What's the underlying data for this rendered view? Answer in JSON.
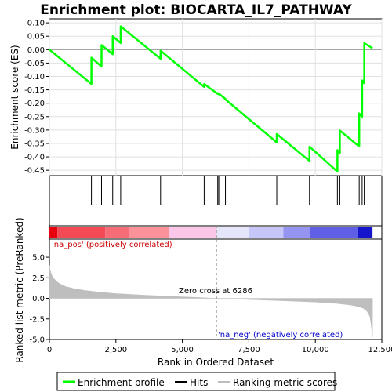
{
  "chart_data": {
    "type": "line",
    "title": "Enrichment plot: BIOCARTA_IL7_PATHWAY",
    "es_panel": {
      "ylabel": "Enrichment score (ES)",
      "ylim": [
        -0.47,
        0.115
      ],
      "yticks": [
        0.1,
        0.05,
        0.0,
        -0.05,
        -0.1,
        -0.15,
        -0.2,
        -0.25,
        -0.3,
        -0.35,
        -0.4,
        -0.45
      ],
      "ytick_labels": [
        "0.10",
        "0.05",
        "0.00",
        "-0.05",
        "-0.10",
        "-0.15",
        "-0.20",
        "-0.25",
        "-0.30",
        "-0.35",
        "-0.40",
        "-0.45"
      ],
      "grid": true,
      "series": [
        {
          "name": "Enrichment profile",
          "color": "#00ff00",
          "x": [
            0,
            1580,
            1581,
            1960,
            1961,
            2380,
            2381,
            2680,
            2681,
            4180,
            4181,
            5820,
            5821,
            6330,
            6331,
            6370,
            6371,
            6620,
            6621,
            8550,
            8551,
            9780,
            9781,
            10830,
            10831,
            10920,
            10921,
            11650,
            11651,
            11760,
            11761,
            11840,
            11841,
            12150
          ],
          "y": [
            0.0,
            -0.128,
            -0.03,
            -0.063,
            0.017,
            -0.017,
            0.05,
            0.025,
            0.087,
            -0.034,
            -0.004,
            -0.139,
            -0.128,
            -0.165,
            -0.162,
            -0.167,
            -0.164,
            -0.184,
            -0.186,
            -0.346,
            -0.315,
            -0.415,
            -0.362,
            -0.455,
            -0.375,
            -0.386,
            -0.302,
            -0.361,
            -0.238,
            -0.25,
            -0.115,
            -0.125,
            0.024,
            0.005
          ]
        }
      ]
    },
    "hits": {
      "name": "Hits",
      "color": "#000000",
      "x": [
        1580,
        1960,
        2380,
        2680,
        4180,
        5820,
        6330,
        6370,
        6620,
        8550,
        9780,
        10830,
        10920,
        11650,
        11760,
        11840
      ]
    },
    "ranking_bar": {
      "segments": [
        {
          "x0": 0,
          "x1": 300,
          "color": "#e8000f"
        },
        {
          "x0": 300,
          "x1": 2100,
          "color": "#f44a55"
        },
        {
          "x0": 2100,
          "x1": 3000,
          "color": "#f76d77"
        },
        {
          "x0": 3000,
          "x1": 4500,
          "color": "#fb9199"
        },
        {
          "x0": 4500,
          "x1": 6300,
          "color": "#fbc6e8"
        },
        {
          "x0": 6300,
          "x1": 7500,
          "color": "#e6e6fb"
        },
        {
          "x0": 7500,
          "x1": 8800,
          "color": "#c6c6f9"
        },
        {
          "x0": 8800,
          "x1": 9800,
          "color": "#9595f1"
        },
        {
          "x0": 9800,
          "x1": 11600,
          "color": "#6060e6"
        },
        {
          "x0": 11600,
          "x1": 12150,
          "color": "#1515cc"
        }
      ]
    },
    "metric_panel": {
      "ylabel": "Ranked list metric (PreRanked)",
      "ylim": [
        -5.0,
        7.2
      ],
      "yticks": [
        5.0,
        2.5,
        0.0,
        -2.5,
        -5.0
      ],
      "ytick_labels": [
        "5.0",
        "2.5",
        "0.0",
        "-2.5",
        "-5.0"
      ],
      "series": {
        "name": "Ranking metric scores",
        "color": "#bebebe",
        "x": [
          0,
          30,
          80,
          150,
          250,
          400,
          600,
          900,
          1300,
          1800,
          2500,
          3500,
          4500,
          5500,
          6286,
          7000,
          8000,
          9000,
          10000,
          10800,
          11300,
          11600,
          11800,
          11950,
          12050,
          12100,
          12150
        ],
        "y": [
          4.0,
          3.4,
          2.9,
          2.5,
          2.1,
          1.75,
          1.45,
          1.2,
          0.98,
          0.78,
          0.58,
          0.4,
          0.25,
          0.12,
          0.0,
          -0.08,
          -0.2,
          -0.32,
          -0.45,
          -0.62,
          -0.8,
          -0.98,
          -1.2,
          -1.6,
          -2.2,
          -3.2,
          -4.7
        ]
      },
      "zero_cross_label": "Zero cross at 6286",
      "zero_cross": 6286,
      "pos_label": "'na_pos' (positively correlated)",
      "neg_label": "'na_neg' (negatively correlated)"
    },
    "xlabel": "Rank in Ordered Dataset",
    "xlim": [
      0,
      12500
    ],
    "xticks": [
      0,
      2500,
      5000,
      7500,
      10000,
      12500
    ],
    "xtick_labels": [
      "0",
      "2,500",
      "5,000",
      "7,500",
      "10,000",
      "12,500"
    ],
    "legend": {
      "position": "bottom",
      "entries": [
        {
          "label": "Enrichment profile",
          "color": "#00ff00"
        },
        {
          "label": "Hits",
          "color": "#000000"
        },
        {
          "label": "Ranking metric scores",
          "color": "#bebebe"
        }
      ]
    }
  }
}
